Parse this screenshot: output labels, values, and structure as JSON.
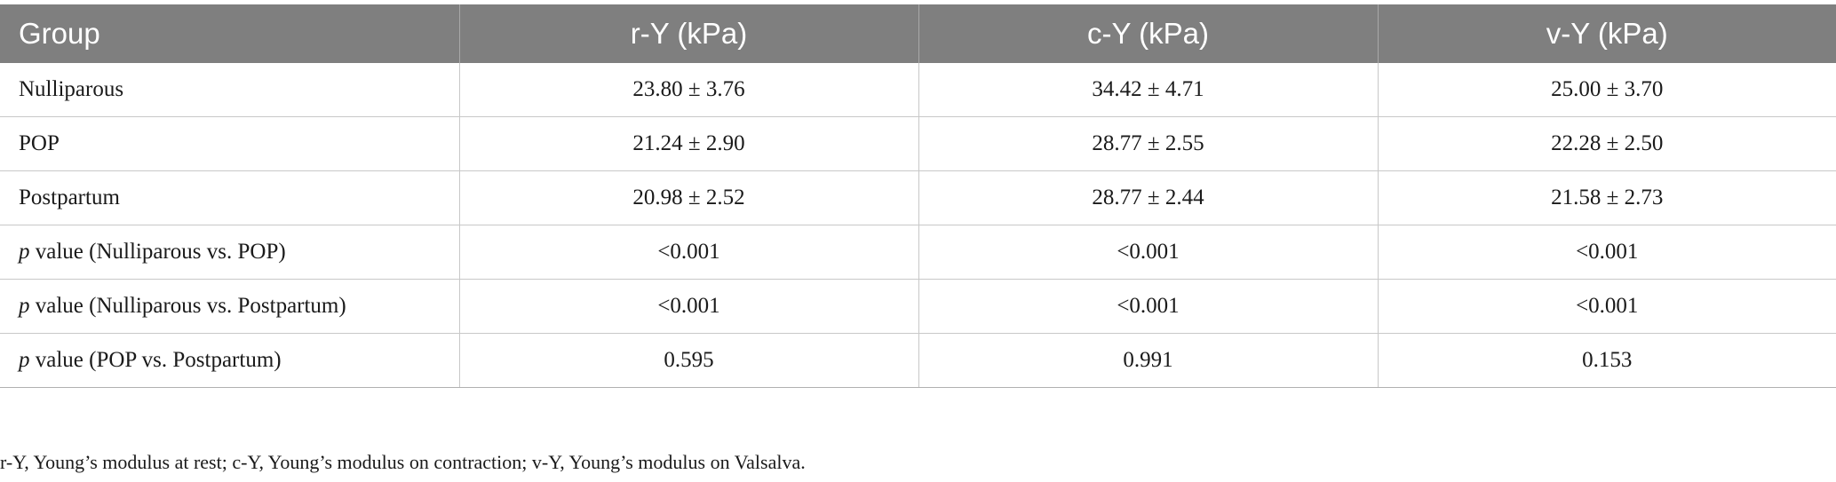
{
  "table": {
    "headers": [
      "Group",
      "r-Y (kPa)",
      "c-Y (kPa)",
      "v-Y (kPa)"
    ],
    "rows": [
      {
        "label_italic": "",
        "label": "Nulliparous",
        "cells": [
          "23.80 ± 3.76",
          "34.42 ± 4.71",
          "25.00 ± 3.70"
        ]
      },
      {
        "label_italic": "",
        "label": "POP",
        "cells": [
          "21.24 ± 2.90",
          "28.77 ± 2.55",
          "22.28 ± 2.50"
        ]
      },
      {
        "label_italic": "",
        "label": "Postpartum",
        "cells": [
          "20.98 ± 2.52",
          "28.77 ± 2.44",
          "21.58 ± 2.73"
        ]
      },
      {
        "label_italic": "p",
        "label": " value (Nulliparous vs. POP)",
        "cells": [
          "<0.001",
          "<0.001",
          "<0.001"
        ]
      },
      {
        "label_italic": "p",
        "label": " value (Nulliparous vs. Postpartum)",
        "cells": [
          "<0.001",
          "<0.001",
          "<0.001"
        ]
      },
      {
        "label_italic": "p",
        "label": " value (POP vs. Postpartum)",
        "cells": [
          "0.595",
          "0.991",
          "0.153"
        ]
      }
    ]
  },
  "footnote": "r-Y, Young’s modulus at rest; c-Y, Young’s modulus on contraction; v-Y, Young’s modulus on Valsalva.",
  "colors": {
    "header_bg": "#7f7f7f",
    "header_text": "#ffffff",
    "grid": "#c8c8c8"
  }
}
